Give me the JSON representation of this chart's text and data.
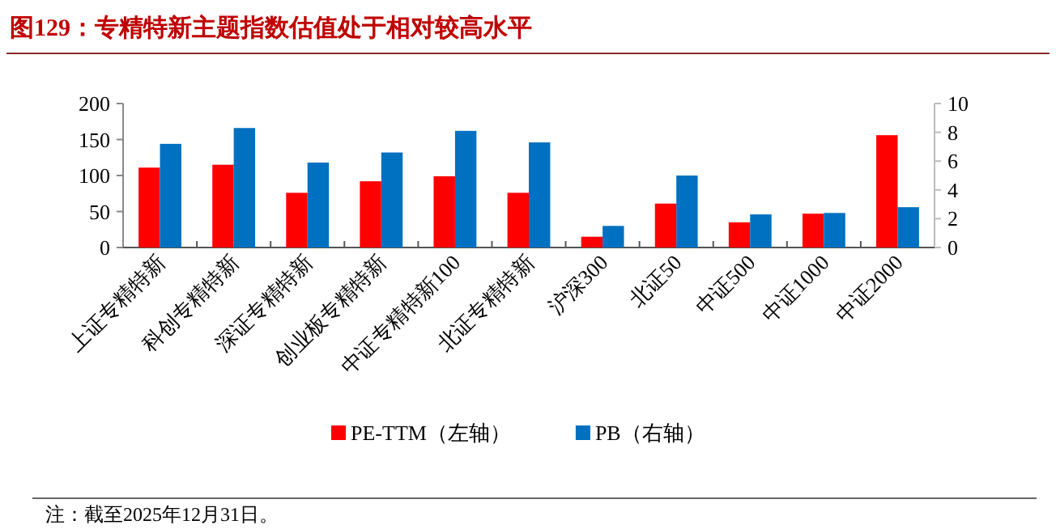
{
  "chart_data": {
    "type": "bar",
    "title": "图129：专精特新主题指数估值处于相对较高水平",
    "categories": [
      "上证专精特新",
      "科创专精特新",
      "深证专精特新",
      "创业板专精特新",
      "中证专精特新100",
      "北证专精特新",
      "沪深300",
      "北证50",
      "中证500",
      "中证1000",
      "中证2000"
    ],
    "series": [
      {
        "name": "PE-TTM（左轴）",
        "color": "#ff0000",
        "values": [
          111,
          115,
          76,
          92,
          99,
          76,
          15,
          61,
          35,
          47,
          156
        ]
      },
      {
        "name": "PB（右轴）",
        "color": "#0070c0",
        "axis": "y2",
        "values": [
          7.2,
          8.3,
          5.9,
          6.6,
          8.1,
          7.3,
          1.5,
          5.0,
          2.3,
          2.4,
          2.8
        ]
      }
    ],
    "ylim": [
      0,
      200
    ],
    "yticks": [
      0,
      50,
      100,
      150,
      200
    ],
    "y2lim": [
      0,
      10
    ],
    "y2ticks": [
      0,
      2,
      4,
      6,
      8,
      10
    ],
    "legend": "bottom",
    "annotations": [
      "注：截至2025年12月31日。"
    ]
  }
}
